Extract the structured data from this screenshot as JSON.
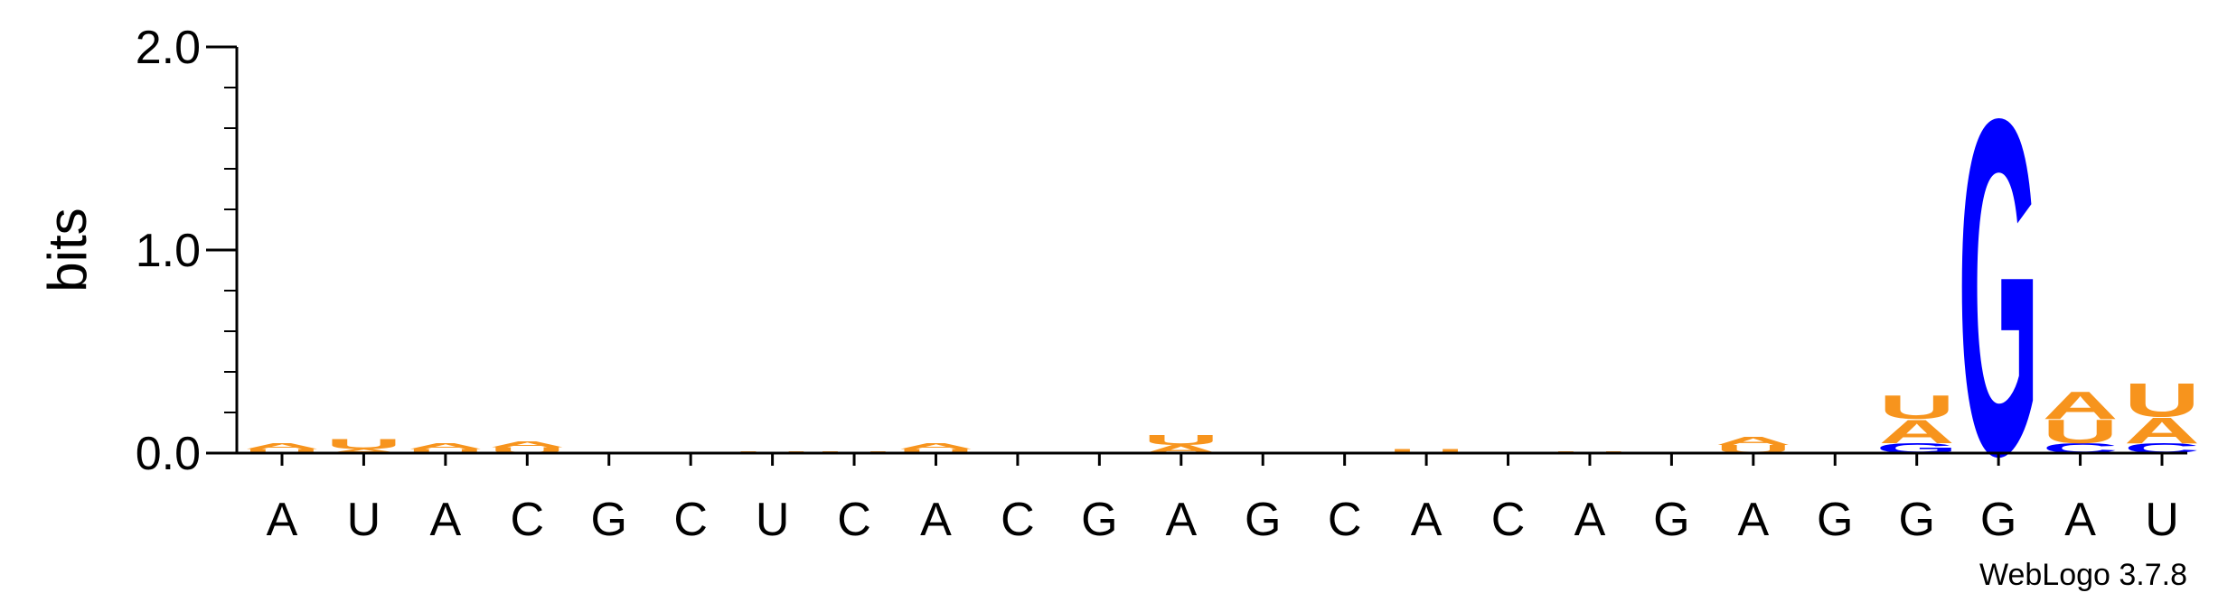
{
  "chart_data": {
    "type": "sequence-logo",
    "ylabel": "bits",
    "ylim": [
      0,
      2.0
    ],
    "yticks": [
      "0.0",
      "1.0",
      "2.0"
    ],
    "colors": {
      "A": "#f7941d",
      "U": "#f7941d",
      "C": "#0000ff",
      "G": "#0000ff"
    },
    "positions": [
      {
        "label": "A",
        "stack": [
          {
            "letter": "U",
            "bits": 0.02
          },
          {
            "letter": "A",
            "bits": 0.03
          }
        ]
      },
      {
        "label": "U",
        "stack": [
          {
            "letter": "A",
            "bits": 0.02
          },
          {
            "letter": "U",
            "bits": 0.05
          }
        ]
      },
      {
        "label": "A",
        "stack": [
          {
            "letter": "U",
            "bits": 0.02
          },
          {
            "letter": "A",
            "bits": 0.03
          }
        ]
      },
      {
        "label": "C",
        "stack": [
          {
            "letter": "U",
            "bits": 0.03
          },
          {
            "letter": "A",
            "bits": 0.03
          }
        ]
      },
      {
        "label": "G",
        "stack": [
          {
            "letter": "A",
            "bits": 0.005
          }
        ]
      },
      {
        "label": "C",
        "stack": [
          {
            "letter": "U",
            "bits": 0.003
          }
        ]
      },
      {
        "label": "U",
        "stack": [
          {
            "letter": "U",
            "bits": 0.01
          }
        ]
      },
      {
        "label": "C",
        "stack": [
          {
            "letter": "U",
            "bits": 0.01
          }
        ]
      },
      {
        "label": "A",
        "stack": [
          {
            "letter": "U",
            "bits": 0.02
          },
          {
            "letter": "A",
            "bits": 0.03
          }
        ]
      },
      {
        "label": "C",
        "stack": [
          {
            "letter": "U",
            "bits": 0.005
          }
        ]
      },
      {
        "label": "G",
        "stack": [
          {
            "letter": "U",
            "bits": 0.005
          }
        ]
      },
      {
        "label": "A",
        "stack": [
          {
            "letter": "A",
            "bits": 0.04
          },
          {
            "letter": "U",
            "bits": 0.05
          }
        ]
      },
      {
        "label": "G",
        "stack": [
          {
            "letter": "U",
            "bits": 0.005
          }
        ]
      },
      {
        "label": "C",
        "stack": [
          {
            "letter": "U",
            "bits": 0.005
          }
        ]
      },
      {
        "label": "A",
        "stack": [
          {
            "letter": "U",
            "bits": 0.02
          }
        ]
      },
      {
        "label": "C",
        "stack": [
          {
            "letter": "U",
            "bits": 0.005
          }
        ]
      },
      {
        "label": "A",
        "stack": [
          {
            "letter": "U",
            "bits": 0.01
          }
        ]
      },
      {
        "label": "G",
        "stack": [
          {
            "letter": "U",
            "bits": 0.003
          }
        ]
      },
      {
        "label": "A",
        "stack": [
          {
            "letter": "U",
            "bits": 0.04
          },
          {
            "letter": "A",
            "bits": 0.04
          }
        ]
      },
      {
        "label": "G",
        "stack": [
          {
            "letter": "U",
            "bits": 0.003
          }
        ]
      },
      {
        "label": "G",
        "stack": [
          {
            "letter": "G",
            "bits": 0.05
          },
          {
            "letter": "A",
            "bits": 0.12
          },
          {
            "letter": "U",
            "bits": 0.12
          }
        ]
      },
      {
        "label": "G",
        "stack": [
          {
            "letter": "G",
            "bits": 1.7
          }
        ]
      },
      {
        "label": "A",
        "stack": [
          {
            "letter": "C",
            "bits": 0.05
          },
          {
            "letter": "U",
            "bits": 0.12
          },
          {
            "letter": "A",
            "bits": 0.14
          }
        ]
      },
      {
        "label": "U",
        "stack": [
          {
            "letter": "C",
            "bits": 0.05
          },
          {
            "letter": "A",
            "bits": 0.13
          },
          {
            "letter": "U",
            "bits": 0.17
          }
        ]
      }
    ],
    "credit": "WebLogo 3.7.8"
  }
}
